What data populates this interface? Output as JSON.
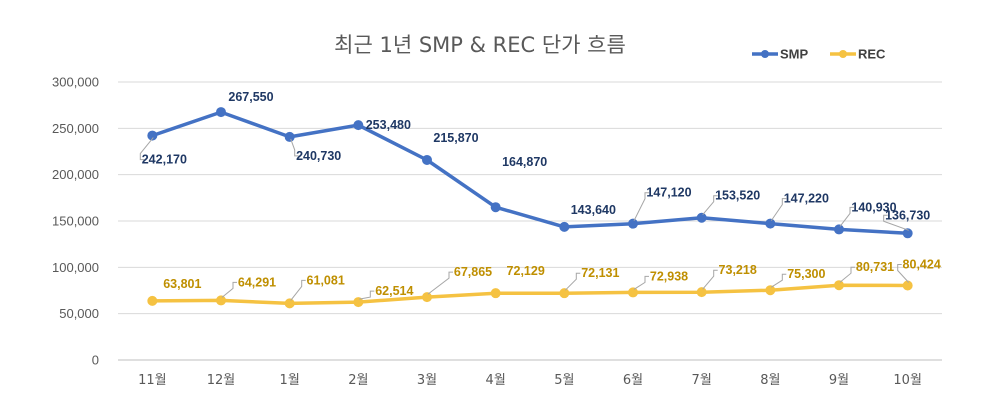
{
  "chart_data": {
    "type": "line",
    "title": "최근 1년 SMP & REC 단가 흐름",
    "categories": [
      "11월",
      "12월",
      "1월",
      "2월",
      "3월",
      "4월",
      "5월",
      "6월",
      "7월",
      "8월",
      "9월",
      "10월"
    ],
    "series": [
      {
        "name": "SMP",
        "color": "#4472C4",
        "values": [
          242170,
          267550,
          240730,
          253480,
          215870,
          164870,
          143640,
          147120,
          153520,
          147220,
          140930,
          136730
        ],
        "labels": [
          "242,170",
          "267,550",
          "240,730",
          "253,480",
          "215,870",
          "164,870",
          "143,640",
          "147,120",
          "153,520",
          "147,220",
          "140,930",
          "136,730"
        ]
      },
      {
        "name": "REC",
        "color": "#F5C242",
        "values": [
          63801,
          64291,
          61081,
          62514,
          67865,
          72129,
          72131,
          72938,
          73218,
          75300,
          80731,
          80424
        ],
        "labels": [
          "63,801",
          "64,291",
          "61,081",
          "62,514",
          "67,865",
          "72,129",
          "72,131",
          "72,938",
          "73,218",
          "75,300",
          "80,731",
          "80,424"
        ]
      }
    ],
    "yticks": [
      "0",
      "50,000",
      "100,000",
      "150,000",
      "200,000",
      "250,000",
      "300,000"
    ],
    "ylim": [
      0,
      300000
    ],
    "grid": true,
    "legend": "top-right"
  }
}
